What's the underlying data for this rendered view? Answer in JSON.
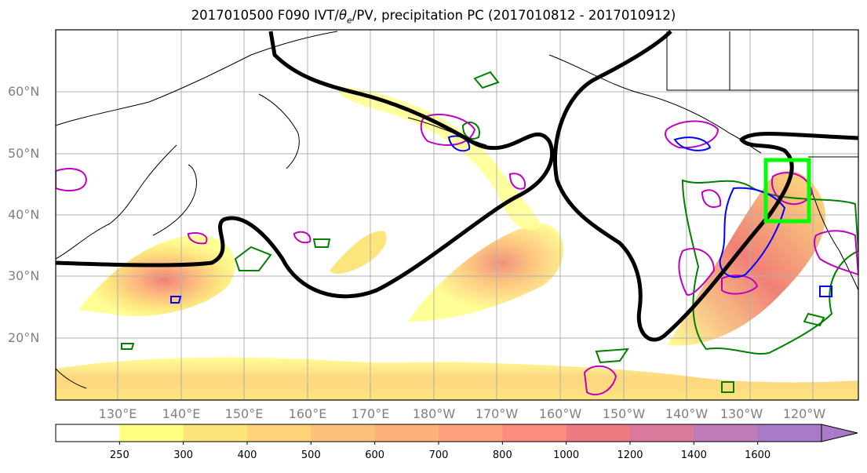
{
  "title": {
    "prefix": "2017010500 F090 IVT/",
    "theta": "θ",
    "sub": "e",
    "suffix": "/PV, precipitation PC (2017010812 - 2017010912)"
  },
  "axes": {
    "lat_labels": [
      "60°N",
      "50°N",
      "40°N",
      "30°N",
      "20°N"
    ],
    "lon_labels": [
      "130°E",
      "140°E",
      "150°E",
      "160°E",
      "170°E",
      "180°W",
      "170°W",
      "160°W",
      "150°W",
      "140°W",
      "130°W",
      "120°W"
    ]
  },
  "colorbar": {
    "tick_labels": [
      "250",
      "300",
      "400",
      "500",
      "600",
      "700",
      "800",
      "1000",
      "1200",
      "1400",
      "1600"
    ],
    "colors": [
      "#ffffff",
      "#ffff80",
      "#fde478",
      "#fdd47a",
      "#fdc27a",
      "#fdb27a",
      "#fda07c",
      "#fd8c7c",
      "#f07a82",
      "#d97a9c",
      "#be7cb8",
      "#a87ac8"
    ]
  },
  "overlay_colors": {
    "ivt_shading": "#fdc27a",
    "theta_e_contour": "#000000",
    "pv_contour": "#c000c0",
    "precip_blue": "#0000ff",
    "precip_green": "#008000",
    "target_box": "#00ff00"
  }
}
